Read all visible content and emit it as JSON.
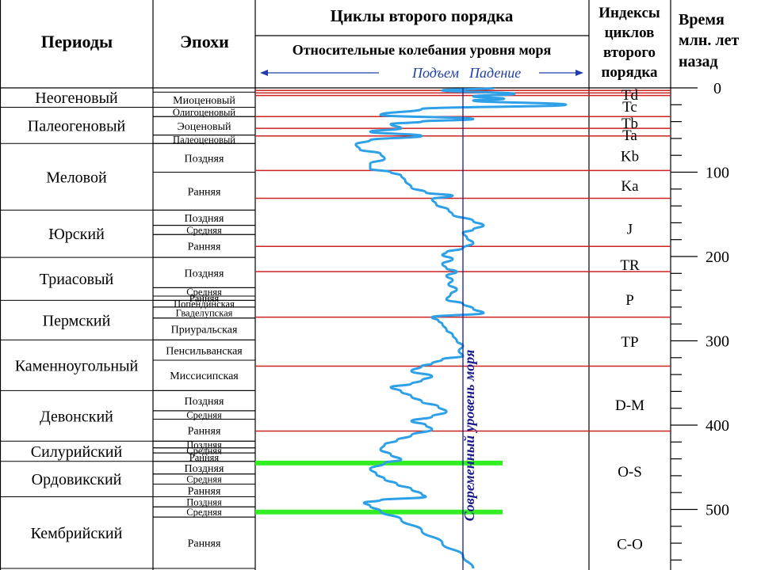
{
  "header": {
    "periods": "Периоды",
    "epochs": "Эпохи",
    "cycles": "Циклы второго порядка",
    "sea_level": "Относительные колебания уровня моря",
    "rise": "Подъем",
    "fall": "Падение",
    "indices_line1": "Индексы",
    "indices_line2": "циклов",
    "indices_line3": "второго",
    "indices_line4": "порядка",
    "time_line1": "Время",
    "time_line2": "млн. лет",
    "time_line3": "назад"
  },
  "modern_sea_level_label": "Современный уровень моря",
  "colors": {
    "curve": "#2ea0e8",
    "boundary": "#cc2222",
    "highlight": "#33ee22",
    "modern_line": "#1a1a8c",
    "grid": "#000000"
  },
  "chart_data": {
    "type": "line",
    "title": "Циклы второго порядка",
    "ylabel": "Время млн. лет назад",
    "ylim": [
      0,
      570
    ],
    "y_axis_ticks": [
      0,
      100,
      200,
      300,
      400,
      500
    ],
    "periods": [
      {
        "name": "Неогеновый",
        "start": 0,
        "end": 23
      },
      {
        "name": "Палеогеновый",
        "start": 23,
        "end": 66
      },
      {
        "name": "Меловой",
        "start": 66,
        "end": 145
      },
      {
        "name": "Юрский",
        "start": 145,
        "end": 201
      },
      {
        "name": "Триасовый",
        "start": 201,
        "end": 252
      },
      {
        "name": "Пермский",
        "start": 252,
        "end": 299
      },
      {
        "name": "Каменноугольный",
        "start": 299,
        "end": 359
      },
      {
        "name": "Девонский",
        "start": 359,
        "end": 419
      },
      {
        "name": "Силурийский",
        "start": 419,
        "end": 443
      },
      {
        "name": "Ордовикский",
        "start": 443,
        "end": 485
      },
      {
        "name": "Кембрийский",
        "start": 485,
        "end": 570
      }
    ],
    "epochs": [
      {
        "name": "Миоценовый",
        "start": 5,
        "end": 23
      },
      {
        "name": "Олигоценовый",
        "start": 23,
        "end": 34
      },
      {
        "name": "Эоценовый",
        "start": 34,
        "end": 56
      },
      {
        "name": "Палеоценовый",
        "start": 56,
        "end": 66
      },
      {
        "name": "Поздняя",
        "start": 66,
        "end": 100
      },
      {
        "name": "Ранняя",
        "start": 100,
        "end": 145
      },
      {
        "name": "Поздняя",
        "start": 145,
        "end": 163
      },
      {
        "name": "Средняя",
        "start": 163,
        "end": 174
      },
      {
        "name": "Ранняя",
        "start": 174,
        "end": 201
      },
      {
        "name": "Поздняя",
        "start": 201,
        "end": 237
      },
      {
        "name": "Средняя",
        "start": 237,
        "end": 247
      },
      {
        "name": "Ранняя",
        "start": 247,
        "end": 252
      },
      {
        "name": "Попендинская",
        "start": 252,
        "end": 260
      },
      {
        "name": "Гваделупская",
        "start": 260,
        "end": 273
      },
      {
        "name": "Приуральская",
        "start": 273,
        "end": 299
      },
      {
        "name": "Пенсильванская",
        "start": 299,
        "end": 323
      },
      {
        "name": "Миссисипская",
        "start": 323,
        "end": 359
      },
      {
        "name": "Поздняя",
        "start": 359,
        "end": 383
      },
      {
        "name": "Средняя",
        "start": 383,
        "end": 393
      },
      {
        "name": "Ранняя",
        "start": 393,
        "end": 419
      },
      {
        "name": "Поздняя",
        "start": 419,
        "end": 427
      },
      {
        "name": "Средняя",
        "start": 427,
        "end": 433
      },
      {
        "name": "Ранняя",
        "start": 433,
        "end": 443
      },
      {
        "name": "Поздняя",
        "start": 443,
        "end": 458
      },
      {
        "name": "Средняя",
        "start": 458,
        "end": 470
      },
      {
        "name": "Ранняя",
        "start": 470,
        "end": 485
      },
      {
        "name": "Поздняя",
        "start": 485,
        "end": 497
      },
      {
        "name": "Средняя",
        "start": 497,
        "end": 509
      },
      {
        "name": "Ранняя",
        "start": 509,
        "end": 570
      }
    ],
    "cycle_indices": [
      {
        "label": "Td",
        "age": 0
      },
      {
        "label": "Tc",
        "age": 14
      },
      {
        "label": "Tb",
        "age": 34
      },
      {
        "label": "Ta",
        "age": 48
      },
      {
        "label": "Kb",
        "age": 73
      },
      {
        "label": "Ka",
        "age": 108
      },
      {
        "label": "J",
        "age": 159
      },
      {
        "label": "TR",
        "age": 202
      },
      {
        "label": "P",
        "age": 243
      },
      {
        "label": "TP",
        "age": 293
      },
      {
        "label": "D-M",
        "age": 368
      },
      {
        "label": "O-S",
        "age": 447
      },
      {
        "label": "C-O",
        "age": 533
      }
    ],
    "boundaries": [
      3,
      9,
      34,
      48,
      57,
      98,
      131,
      188,
      218,
      272,
      330,
      407
    ],
    "highlight_ages": [
      445,
      503
    ],
    "modern_sea_level": 0,
    "x_range": [
      -0.55,
      0.5
    ],
    "series": [
      {
        "points": [
          [
            0,
            0.15
          ],
          [
            3,
            -0.1
          ],
          [
            7,
            0.25
          ],
          [
            10,
            0.05
          ],
          [
            13,
            0.2
          ],
          [
            15,
            0.05
          ],
          [
            20,
            0.5
          ],
          [
            25,
            -0.2
          ],
          [
            32,
            -0.4
          ],
          [
            37,
            0.05
          ],
          [
            40,
            -0.2
          ],
          [
            43,
            -0.35
          ],
          [
            48,
            -0.3
          ],
          [
            52,
            -0.45
          ],
          [
            57,
            -0.2
          ],
          [
            62,
            -0.45
          ],
          [
            67,
            -0.52
          ],
          [
            73,
            -0.5
          ],
          [
            78,
            -0.4
          ],
          [
            84,
            -0.38
          ],
          [
            90,
            -0.45
          ],
          [
            96,
            -0.45
          ],
          [
            100,
            -0.35
          ],
          [
            104,
            -0.3
          ],
          [
            110,
            -0.28
          ],
          [
            118,
            -0.25
          ],
          [
            124,
            -0.18
          ],
          [
            128,
            -0.05
          ],
          [
            132,
            -0.15
          ],
          [
            138,
            -0.13
          ],
          [
            145,
            -0.07
          ],
          [
            150,
            -0.05
          ],
          [
            158,
            0.05
          ],
          [
            163,
            0.1
          ],
          [
            168,
            0.05
          ],
          [
            172,
            0.0
          ],
          [
            178,
            0.02
          ],
          [
            184,
            0.05
          ],
          [
            190,
            0.0
          ],
          [
            195,
            -0.08
          ],
          [
            198,
            -0.1
          ],
          [
            203,
            -0.05
          ],
          [
            209,
            -0.1
          ],
          [
            214,
            -0.08
          ],
          [
            218,
            -0.03
          ],
          [
            223,
            -0.08
          ],
          [
            228,
            -0.05
          ],
          [
            233,
            -0.07
          ],
          [
            239,
            -0.03
          ],
          [
            245,
            -0.06
          ],
          [
            251,
            -0.08
          ],
          [
            256,
            0.0
          ],
          [
            262,
            0.05
          ],
          [
            267,
            0.1
          ],
          [
            272,
            -0.15
          ],
          [
            276,
            -0.12
          ],
          [
            280,
            -0.1
          ],
          [
            287,
            -0.08
          ],
          [
            293,
            -0.05
          ],
          [
            300,
            -0.03
          ],
          [
            306,
            0.0
          ],
          [
            312,
            -0.02
          ],
          [
            318,
            0.0
          ],
          [
            322,
            -0.1
          ],
          [
            327,
            -0.15
          ],
          [
            330,
            -0.2
          ],
          [
            336,
            -0.25
          ],
          [
            342,
            -0.15
          ],
          [
            347,
            -0.2
          ],
          [
            351,
            -0.25
          ],
          [
            355,
            -0.35
          ],
          [
            360,
            -0.3
          ],
          [
            366,
            -0.25
          ],
          [
            372,
            -0.2
          ],
          [
            378,
            -0.12
          ],
          [
            384,
            -0.08
          ],
          [
            390,
            -0.15
          ],
          [
            395,
            -0.25
          ],
          [
            400,
            -0.18
          ],
          [
            405,
            -0.15
          ],
          [
            412,
            -0.25
          ],
          [
            418,
            -0.32
          ],
          [
            423,
            -0.38
          ],
          [
            429,
            -0.4
          ],
          [
            435,
            -0.35
          ],
          [
            441,
            -0.3
          ],
          [
            445,
            -0.38
          ],
          [
            452,
            -0.45
          ],
          [
            458,
            -0.42
          ],
          [
            464,
            -0.38
          ],
          [
            470,
            -0.32
          ],
          [
            476,
            -0.25
          ],
          [
            482,
            -0.2
          ],
          [
            485,
            -0.18
          ],
          [
            489,
            -0.4
          ],
          [
            492,
            -0.48
          ],
          [
            496,
            -0.45
          ],
          [
            502,
            -0.4
          ],
          [
            512,
            -0.3
          ],
          [
            525,
            -0.2
          ],
          [
            540,
            -0.1
          ],
          [
            555,
            0.0
          ],
          [
            570,
            0.05
          ]
        ]
      }
    ]
  }
}
